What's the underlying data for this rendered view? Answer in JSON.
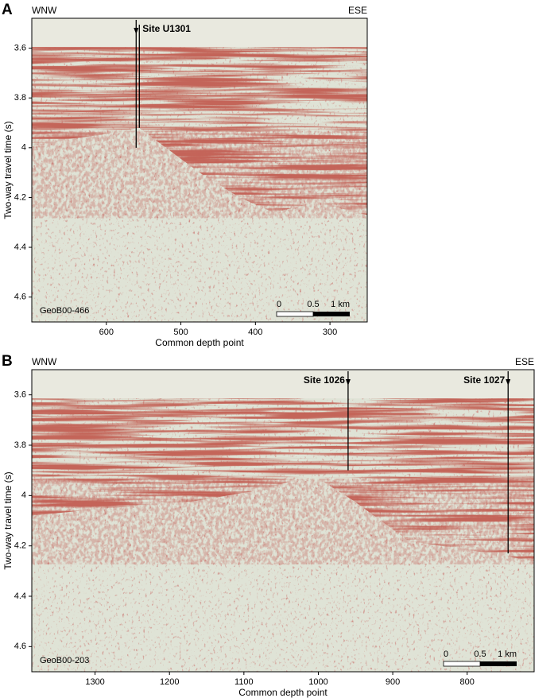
{
  "chart_data": [
    {
      "type": "seismic",
      "panel": "A",
      "left_label": "WNW",
      "right_label": "ESE",
      "xlabel": "Common depth point",
      "ylabel": "Two-way travel time (s)",
      "xlim": [
        700,
        250
      ],
      "ylim": [
        3.48,
        4.7
      ],
      "xticks": [
        600,
        500,
        400,
        300
      ],
      "yticks": [
        3.6,
        3.8,
        4.0,
        4.2,
        4.4,
        4.6
      ],
      "line_label": "GeoB00-466",
      "scale_bar": [
        "0",
        "0.5",
        "1 km"
      ],
      "sites": [
        {
          "label": "Site U1301",
          "x": 560,
          "depth": 4.0
        }
      ]
    },
    {
      "type": "seismic",
      "panel": "B",
      "left_label": "WNW",
      "right_label": "ESE",
      "xlabel": "Common depth point",
      "ylabel": "Two-way travel time (s)",
      "xlim": [
        1385,
        710
      ],
      "ylim": [
        3.5,
        4.7
      ],
      "xticks": [
        1300,
        1200,
        1100,
        1000,
        900,
        800
      ],
      "yticks": [
        3.6,
        3.8,
        4.0,
        4.2,
        4.4,
        4.6
      ],
      "line_label": "GeoB00-203",
      "scale_bar": [
        "0",
        "0.5",
        "1 km"
      ],
      "sites": [
        {
          "label": "Site 1026",
          "x": 960,
          "depth": 3.9
        },
        {
          "label": "Site 1027",
          "x": 745,
          "depth": 4.23
        }
      ]
    }
  ]
}
